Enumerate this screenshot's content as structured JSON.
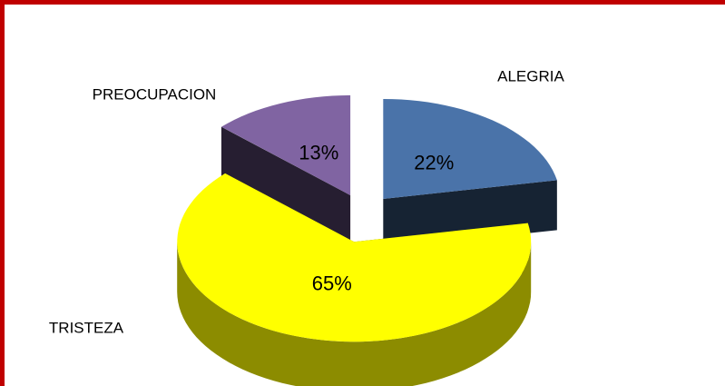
{
  "chart_data": {
    "type": "pie3d",
    "categories": [
      "ALEGRIA",
      "TRISTEZA",
      "PREOCUPACION"
    ],
    "values": [
      22,
      65,
      13
    ],
    "value_labels": [
      "22%",
      "65%",
      "13%"
    ],
    "colors": [
      "#4a73a9",
      "#ffff00",
      "#8064a2"
    ]
  }
}
